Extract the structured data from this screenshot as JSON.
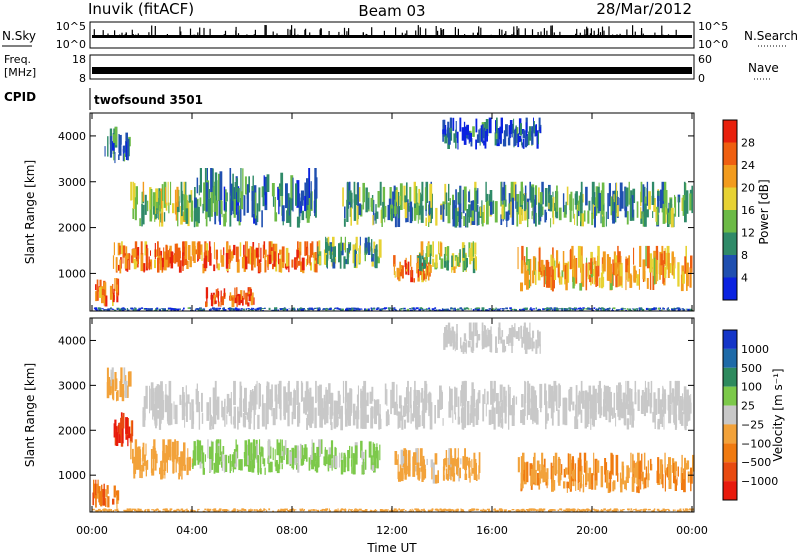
{
  "header": {
    "station": "Inuvik (fitACF)",
    "beam": "Beam 03",
    "date": "28/Mar/2012"
  },
  "strips": {
    "nsky": {
      "label": "N.Sky",
      "tick_top": "10^5",
      "tick_bottom": "10^0"
    },
    "nsearch": {
      "label": "N.Search",
      "tick_top": "10^5",
      "tick_bottom": "10^0"
    },
    "freq": {
      "label_top": "Freq.",
      "label_bottom": "[MHz]",
      "tick_top": "18",
      "tick_bottom": "8"
    },
    "nave": {
      "label": "Nave",
      "tick_top": "60",
      "tick_bottom": "0"
    },
    "cpid": {
      "label": "CPID",
      "value": "twofsound 3501"
    }
  },
  "chart_data": [
    {
      "type": "heatmap",
      "panel": "power",
      "ylabel": "Slant Range [km]",
      "xlabel": "",
      "x_ticks": [
        "00:00",
        "04:00",
        "08:00",
        "12:00",
        "16:00",
        "20:00",
        "00:00"
      ],
      "y_ticks": [
        "1000",
        "2000",
        "3000",
        "4000"
      ],
      "xlim_hours": [
        0,
        24
      ],
      "ylim_km": [
        180,
        4500
      ],
      "colorbar": {
        "title": "Power [dB]",
        "tick_labels": [
          "4",
          "8",
          "12",
          "16",
          "20",
          "24",
          "28"
        ],
        "range": [
          0,
          30
        ],
        "colors": [
          "#0a22e0",
          "#1f4fb0",
          "#2f8a68",
          "#6cba46",
          "#e7d233",
          "#f29b1d",
          "#ef5f10",
          "#e8200c"
        ]
      },
      "bands": [
        {
          "t0": 0.0,
          "t1": 24.0,
          "r0": 180,
          "r1": 260,
          "value": 6
        },
        {
          "t0": 0.0,
          "t1": 1.0,
          "r0": 260,
          "r1": 900,
          "value": 24
        },
        {
          "t0": 4.5,
          "t1": 6.5,
          "r0": 260,
          "r1": 700,
          "value": 26
        },
        {
          "t0": 0.8,
          "t1": 9.0,
          "r0": 1000,
          "r1": 1700,
          "value": 24
        },
        {
          "t0": 9.0,
          "t1": 11.5,
          "r0": 1100,
          "r1": 1800,
          "value": 12
        },
        {
          "t0": 12.0,
          "t1": 13.5,
          "r0": 800,
          "r1": 1400,
          "value": 22
        },
        {
          "t0": 13.0,
          "t1": 15.5,
          "r0": 1000,
          "r1": 1700,
          "value": 14
        },
        {
          "t0": 17.0,
          "t1": 24.0,
          "r0": 600,
          "r1": 1600,
          "value": 20
        },
        {
          "t0": 1.5,
          "t1": 4.0,
          "r0": 2000,
          "r1": 3000,
          "value": 14
        },
        {
          "t0": 4.0,
          "t1": 9.0,
          "r0": 2000,
          "r1": 3300,
          "value": 8
        },
        {
          "t0": 10.0,
          "t1": 24.0,
          "r0": 2000,
          "r1": 3000,
          "value": 11
        },
        {
          "t0": 0.5,
          "t1": 1.5,
          "r0": 3400,
          "r1": 4200,
          "value": 6
        },
        {
          "t0": 14.0,
          "t1": 18.0,
          "r0": 3700,
          "r1": 4400,
          "value": 6
        }
      ]
    },
    {
      "type": "heatmap",
      "panel": "velocity",
      "ylabel": "Slant Range [km]",
      "xlabel": "Time UT",
      "x_ticks": [
        "00:00",
        "04:00",
        "08:00",
        "12:00",
        "16:00",
        "20:00",
        "00:00"
      ],
      "y_ticks": [
        "1000",
        "2000",
        "3000",
        "4000"
      ],
      "xlim_hours": [
        0,
        24
      ],
      "ylim_km": [
        180,
        4500
      ],
      "colorbar": {
        "title": "Velocity [m s⁻¹]",
        "tick_labels": [
          "1000",
          "500",
          "100",
          "25",
          "−25",
          "−100",
          "−500",
          "−1000"
        ],
        "range": [
          -1000,
          1000
        ],
        "colors": [
          "#1435c8",
          "#1e6aa8",
          "#2e8a5e",
          "#7cc94a",
          "#c8c8c8",
          "#f2a23a",
          "#f07a10",
          "#e84a10",
          "#e81a0c"
        ]
      },
      "bands": [
        {
          "t0": 0.0,
          "t1": 24.0,
          "r0": 180,
          "r1": 260,
          "value": -200
        },
        {
          "t0": 0.0,
          "t1": 1.0,
          "r0": 260,
          "r1": 900,
          "value": -500
        },
        {
          "t0": 0.8,
          "t1": 1.6,
          "r0": 1600,
          "r1": 2400,
          "value": -800
        },
        {
          "t0": 1.5,
          "t1": 4.0,
          "r0": 900,
          "r1": 1800,
          "value": -200
        },
        {
          "t0": 4.0,
          "t1": 11.5,
          "r0": 1000,
          "r1": 1800,
          "value": 150
        },
        {
          "t0": 12.0,
          "t1": 15.5,
          "r0": 800,
          "r1": 1600,
          "value": -150
        },
        {
          "t0": 17.0,
          "t1": 24.0,
          "r0": 600,
          "r1": 1500,
          "value": -300
        },
        {
          "t0": 2.0,
          "t1": 24.0,
          "r0": 2000,
          "r1": 3100,
          "value": 0
        },
        {
          "t0": 0.5,
          "t1": 1.5,
          "r0": 2600,
          "r1": 3400,
          "value": -150
        },
        {
          "t0": 14.0,
          "t1": 18.0,
          "r0": 3700,
          "r1": 4400,
          "value": 0
        }
      ]
    }
  ]
}
